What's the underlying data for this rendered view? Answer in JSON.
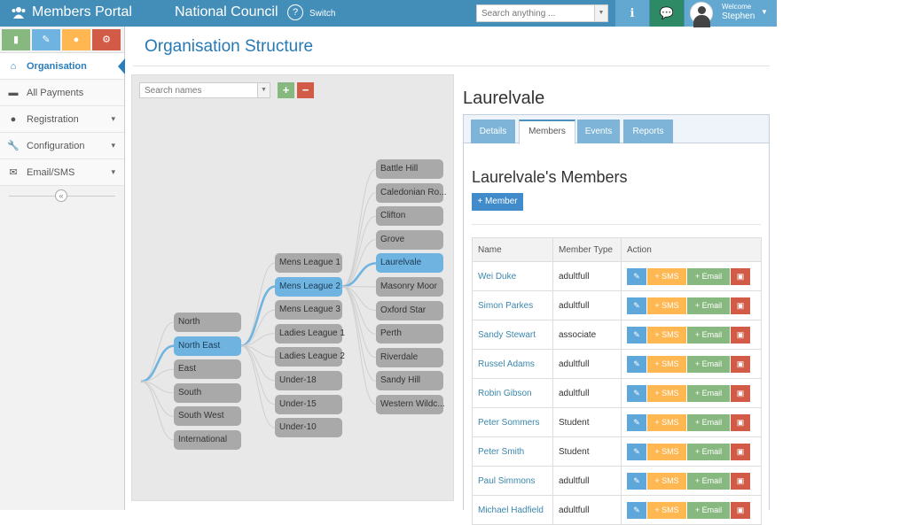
{
  "topbar": {
    "brand": "Members Portal",
    "brand_icon": "users-icon",
    "council": "National Council",
    "switch_label": "Switch",
    "search_placeholder": "Search anything ...",
    "user_welcome": "Welcome",
    "user_name": "Stephen",
    "color": "#438eb9"
  },
  "sidebar": {
    "items": [
      {
        "label": "Organisation",
        "icon": "home-icon",
        "active": true
      },
      {
        "label": "All Payments",
        "icon": "credit-card-icon"
      },
      {
        "label": "Registration",
        "icon": "group-icon",
        "expandable": true
      },
      {
        "label": "Configuration",
        "icon": "wrench-icon",
        "expandable": true
      },
      {
        "label": "Email/SMS",
        "icon": "envelope-icon",
        "expandable": true
      }
    ]
  },
  "page": {
    "title": "Organisation Structure"
  },
  "tree": {
    "search_placeholder": "Search names",
    "regions": [
      "North",
      "North East",
      "East",
      "South",
      "South West",
      "International"
    ],
    "leagues": [
      "Mens League 1",
      "Mens League 2",
      "Mens League 3",
      "Ladies League 1",
      "Ladies League 2",
      "Under-18",
      "Under-15",
      "Under-10"
    ],
    "clubs": [
      "Battle Hill",
      "Caledonian Ro...",
      "Clifton",
      "Grove",
      "Laurelvale",
      "Masonry Moor",
      "Oxford Star",
      "Perth",
      "Riverdale",
      "Sandy Hill",
      "Western Wildc..."
    ],
    "selected_region": "North East",
    "selected_league": "Mens League 2",
    "selected_club": "Laurelvale"
  },
  "detail": {
    "title": "Laurelvale",
    "tabs": [
      "Details",
      "Members",
      "Events",
      "Reports"
    ],
    "active_tab": "Members",
    "members_title": "Laurelvale's Members",
    "add_member_label": "+ Member",
    "columns": [
      "Name",
      "Member Type",
      "Action"
    ],
    "action_labels": {
      "sms": "+ SMS",
      "email": "+ Email"
    },
    "members": [
      {
        "name": "Wei Duke",
        "type": "adultfull"
      },
      {
        "name": "Simon Parkes",
        "type": "adultfull"
      },
      {
        "name": "Sandy Stewart",
        "type": "associate"
      },
      {
        "name": "Russel Adams",
        "type": "adultfull"
      },
      {
        "name": "Robin Gibson",
        "type": "adultfull"
      },
      {
        "name": "Peter Sommers",
        "type": "Student"
      },
      {
        "name": "Peter Smith",
        "type": "Student"
      },
      {
        "name": "Paul Simmons",
        "type": "adultfull"
      },
      {
        "name": "Michael Hadfield",
        "type": "adultfull"
      }
    ]
  }
}
